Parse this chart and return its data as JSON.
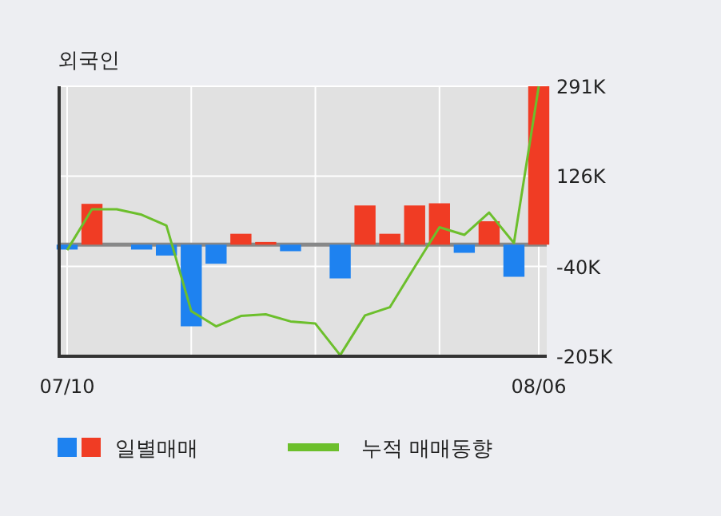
{
  "chart_data": {
    "type": "bar",
    "title": "외국인",
    "categories": [
      "07/10",
      null,
      null,
      null,
      null,
      null,
      null,
      null,
      null,
      null,
      null,
      null,
      null,
      null,
      null,
      null,
      null,
      null,
      null,
      "08/06"
    ],
    "series": [
      {
        "name": "일별매매",
        "colors": [
          "#1e82f0",
          "#f03c24",
          "#1e82f0",
          "#1e82f0",
          "#1e82f0",
          "#1e82f0",
          "#1e82f0",
          "#f03c24",
          "#f03c24",
          "#1e82f0",
          "#1e82f0",
          "#1e82f0",
          "#f03c24",
          "#f03c24",
          "#f03c24",
          "#f03c24",
          "#1e82f0",
          "#f03c24",
          "#1e82f0",
          "#f03c24"
        ],
        "values": [
          -9,
          75,
          0,
          -9,
          -20,
          -150,
          -35,
          20,
          5,
          -12,
          0,
          -62,
          72,
          20,
          72,
          76,
          -15,
          43,
          -59,
          291
        ]
      },
      {
        "name": "누적 매매동향",
        "type": "line",
        "color": "#6cbf2c",
        "values": [
          -10,
          65,
          65,
          55,
          35,
          -122,
          -150,
          -131,
          -128,
          -141,
          -145,
          -203,
          -130,
          -115,
          -41,
          32,
          18,
          59,
          3,
          291
        ]
      }
    ],
    "ylim": [
      -205,
      291
    ],
    "yticks": [
      {
        "value": 291,
        "label": "291K"
      },
      {
        "value": 126,
        "label": "126K"
      },
      {
        "value": -40,
        "label": "-40K"
      },
      {
        "value": -205,
        "label": "-205K"
      }
    ],
    "ref_lines": [
      {
        "axis": "y",
        "value": 0,
        "color": "#888888"
      }
    ],
    "grid": true,
    "legend": "bottom",
    "marker": "none",
    "line_style": "solid"
  }
}
